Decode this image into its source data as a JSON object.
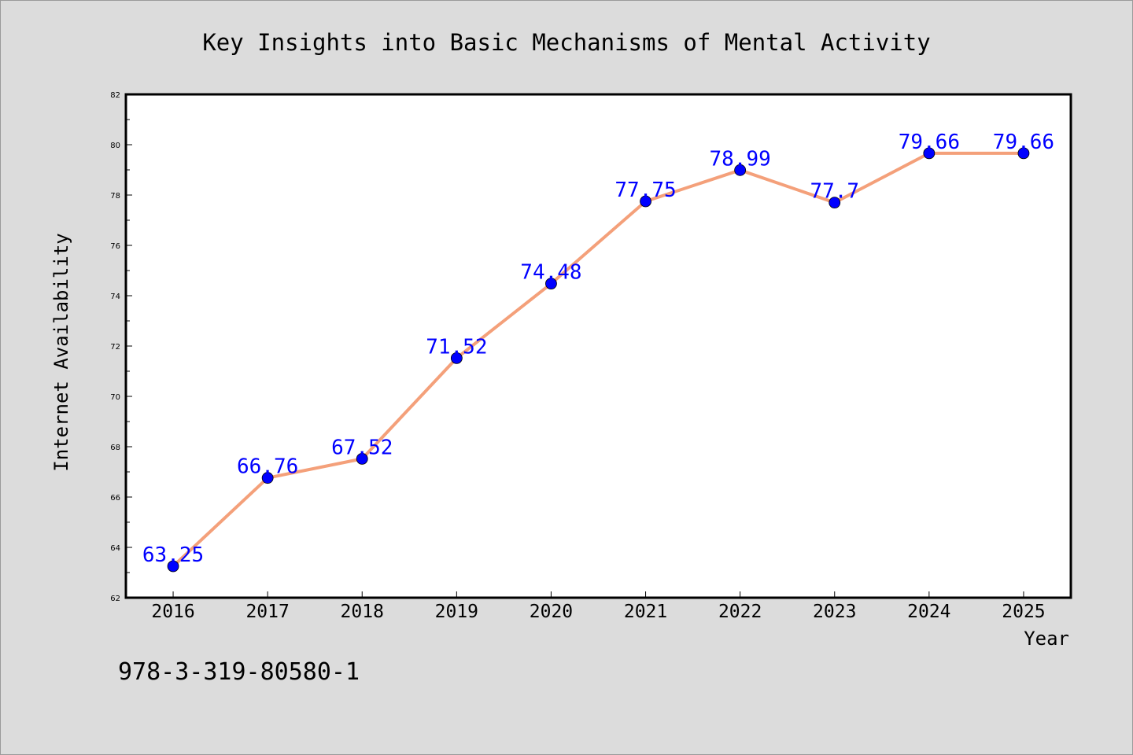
{
  "chart_data": {
    "type": "line",
    "title": "Key Insights into Basic Mechanisms of Mental Activity",
    "xlabel": "Year",
    "ylabel": "Internet Availability",
    "categories": [
      "2016",
      "2017",
      "2018",
      "2019",
      "2020",
      "2021",
      "2022",
      "2023",
      "2024",
      "2025"
    ],
    "series": [
      {
        "values": [
          63.25,
          66.76,
          67.52,
          71.52,
          74.48,
          77.75,
          78.99,
          77.7,
          79.66,
          79.66
        ],
        "labels": [
          "63.25",
          "66.76",
          "67.52",
          "71.52",
          "74.48",
          "77.75",
          "78.99",
          "77.7",
          "79.66",
          "79.66"
        ]
      }
    ],
    "ylim": [
      62,
      82
    ],
    "yticks": [
      "62",
      "64",
      "66",
      "68",
      "70",
      "72",
      "74",
      "76",
      "78",
      "80",
      "82"
    ],
    "grid": false,
    "line_color": "#f4a07a",
    "marker_color": "#0000ff",
    "label_color": "#0000ff"
  },
  "footer": {
    "isbn": "978-3-319-80580-1"
  }
}
